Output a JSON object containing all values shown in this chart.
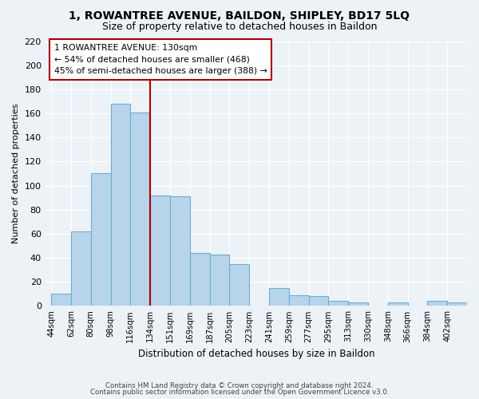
{
  "title": "1, ROWANTREE AVENUE, BAILDON, SHIPLEY, BD17 5LQ",
  "subtitle": "Size of property relative to detached houses in Baildon",
  "xlabel": "Distribution of detached houses by size in Baildon",
  "ylabel": "Number of detached properties",
  "bar_labels": [
    "44sqm",
    "62sqm",
    "80sqm",
    "98sqm",
    "116sqm",
    "134sqm",
    "151sqm",
    "169sqm",
    "187sqm",
    "205sqm",
    "223sqm",
    "241sqm",
    "259sqm",
    "277sqm",
    "295sqm",
    "313sqm",
    "330sqm",
    "348sqm",
    "366sqm",
    "384sqm",
    "402sqm"
  ],
  "bar_values": [
    10,
    62,
    110,
    168,
    161,
    92,
    91,
    44,
    43,
    35,
    0,
    15,
    9,
    8,
    4,
    3,
    0,
    3,
    0,
    4,
    3
  ],
  "bar_color": "#b8d4ea",
  "bar_edge_color": "#6aaed6",
  "vline_x": 5,
  "vline_color": "#aa0000",
  "annotation_title": "1 ROWANTREE AVENUE: 130sqm",
  "annotation_line1": "← 54% of detached houses are smaller (468)",
  "annotation_line2": "45% of semi-detached houses are larger (388) →",
  "ylim": [
    0,
    220
  ],
  "yticks": [
    0,
    20,
    40,
    60,
    80,
    100,
    120,
    140,
    160,
    180,
    200,
    220
  ],
  "footer1": "Contains HM Land Registry data © Crown copyright and database right 2024.",
  "footer2": "Contains public sector information licensed under the Open Government Licence v3.0.",
  "background_color": "#edf2f7"
}
